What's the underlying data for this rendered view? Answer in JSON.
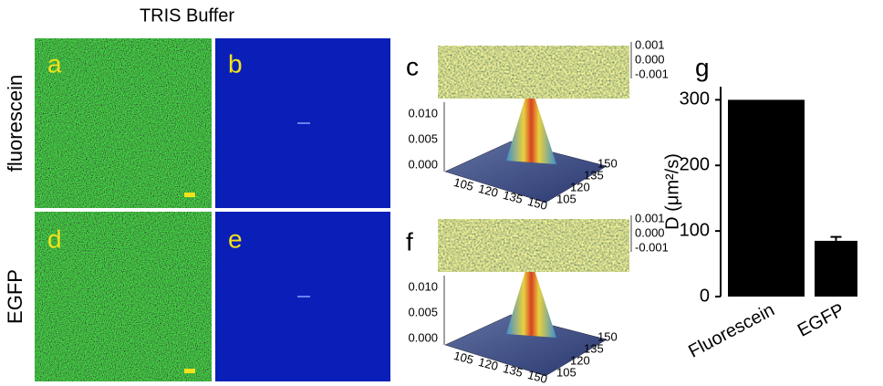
{
  "title": "TRIS Buffer",
  "row_labels": [
    "fluorescein",
    "EGFP"
  ],
  "panel_labels": [
    "a",
    "b",
    "c",
    "d",
    "e",
    "f",
    "g"
  ],
  "surface_plots": [
    {
      "z_ticks": [
        "0.010",
        "0.005",
        "0.000"
      ],
      "top_ticks": [
        "0.001",
        "0.000",
        "-0.001"
      ],
      "x_ticks": [
        "105",
        "120",
        "135",
        "150"
      ],
      "y_ticks": [
        "150",
        "135",
        "120",
        "105"
      ]
    },
    {
      "z_ticks": [
        "0.010",
        "0.005",
        "0.000"
      ],
      "top_ticks": [
        "0.001",
        "0.000",
        "-0.001"
      ],
      "x_ticks": [
        "105",
        "120",
        "135",
        "150"
      ],
      "y_ticks": [
        "150",
        "135",
        "120",
        "105"
      ]
    }
  ],
  "chart_data": {
    "type": "bar",
    "y_label": "D (μm²/s)",
    "categories": [
      "Fluorescein",
      "EGFP"
    ],
    "values": [
      300,
      85
    ],
    "errors": [
      null,
      6
    ],
    "color": "#000000",
    "ylim": [
      0,
      320
    ],
    "yticks": [
      0,
      100,
      200,
      300
    ]
  }
}
